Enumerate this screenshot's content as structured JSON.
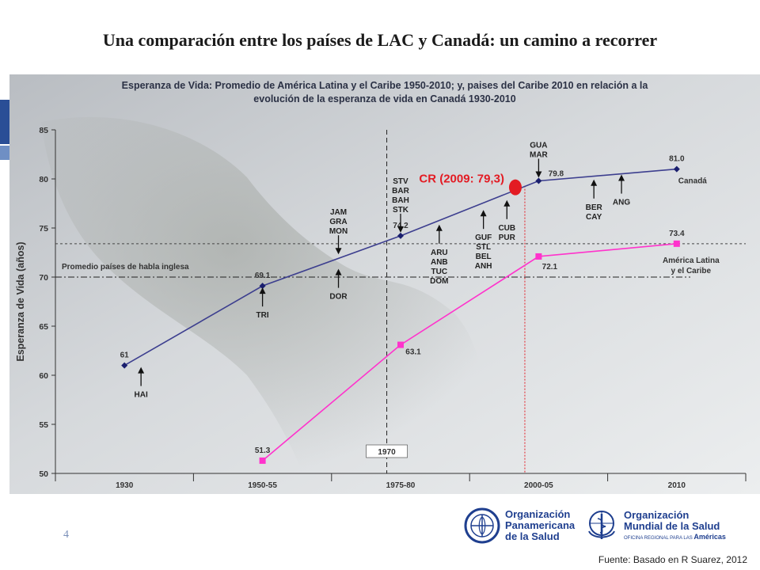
{
  "slide": {
    "title": "Una comparación entre los países de LAC y Canadá: un camino a recorrer",
    "page_number": "4",
    "source": "Fuente: Basado en R Suarez, 2012"
  },
  "logos": {
    "ops": {
      "line1": "Organización",
      "line2": "Panamericana",
      "line3": "de la Salud",
      "icon": "paho-emblem-icon"
    },
    "oms": {
      "line1": "Organización",
      "line2": "Mundial de la Salud",
      "sub": "OFICINA REGIONAL PARA LAS",
      "sub2": "Américas",
      "icon": "who-emblem-icon"
    }
  },
  "chart_data": {
    "type": "line",
    "title": "Esperanza de Vida: Promedio de América Latina y el Caribe 1950-2010; y, paises del Caribe 2010 en relación a la evolución de la esperanza de vida en Canadá 1930-2010",
    "ylabel": "Esperanza de Vida (años)",
    "xlabel": "",
    "ylim": [
      50,
      85
    ],
    "yticks": [
      50,
      55,
      60,
      65,
      70,
      75,
      80,
      85
    ],
    "categories": [
      "1930",
      "1950-55",
      "1975-80",
      "2000-05",
      "2010"
    ],
    "series": [
      {
        "name": "Canadá",
        "color": "#3d3f8f",
        "values": [
          61,
          69.1,
          74.2,
          79.8,
          81.0
        ],
        "labels": [
          "61",
          "69.1",
          "74.2",
          "79.8",
          "81.0"
        ]
      },
      {
        "name": "América Latina y el Caribe",
        "color": "#ff33cc",
        "values": [
          null,
          51.3,
          63.1,
          72.1,
          73.4
        ],
        "labels": [
          "",
          "51.3",
          "63.1",
          "72.1",
          "73.4"
        ]
      }
    ],
    "legend": {
      "canada": "Canadá",
      "lac_line1": "América Latina",
      "lac_line2": "y el Caribe"
    },
    "reference_lines": {
      "english_avg": {
        "label": "Promedio países de habla inglesa",
        "y": 70.0
      },
      "lac_level": {
        "y": 73.4
      },
      "year_1970": {
        "label": "1970",
        "x": 1.9
      }
    },
    "highlight": {
      "label": "CR (2009: 79,3)",
      "x": 2.9,
      "y": 79.3,
      "color": "#e31b23"
    },
    "country_annotations": [
      {
        "text": [
          "HAI"
        ],
        "x": 0.12,
        "y": 61,
        "dir": "up"
      },
      {
        "text": [
          "TRI"
        ],
        "x": 1.0,
        "y": 69.1,
        "dir": "up"
      },
      {
        "text": [
          "JAM",
          "GRA",
          "MON"
        ],
        "x": 1.55,
        "y": 72.0,
        "dir": "down"
      },
      {
        "text": [
          "DOR"
        ],
        "x": 1.55,
        "y": 71.0,
        "dir": "up"
      },
      {
        "text": [
          "STV",
          "BAR",
          "BAH",
          "STK"
        ],
        "x": 2.0,
        "y": 74.2,
        "dir": "down"
      },
      {
        "text": [
          "ARU",
          "ANB",
          "TUC",
          "DOM"
        ],
        "x": 2.28,
        "y": 75.5,
        "dir": "up"
      },
      {
        "text": [
          "GUF",
          "STL",
          "BEL",
          "ANH"
        ],
        "x": 2.6,
        "y": 77.0,
        "dir": "up"
      },
      {
        "text": [
          "CUB",
          "PUR"
        ],
        "x": 2.77,
        "y": 78.0,
        "dir": "up"
      },
      {
        "text": [
          "GUA",
          "MAR"
        ],
        "x": 3.0,
        "y": 79.8,
        "dir": "down"
      },
      {
        "text": [
          "BER",
          "CAY"
        ],
        "x": 3.4,
        "y": 80.1,
        "dir": "up"
      },
      {
        "text": [
          "ANG"
        ],
        "x": 3.6,
        "y": 80.6,
        "dir": "up"
      }
    ],
    "grid": false
  }
}
